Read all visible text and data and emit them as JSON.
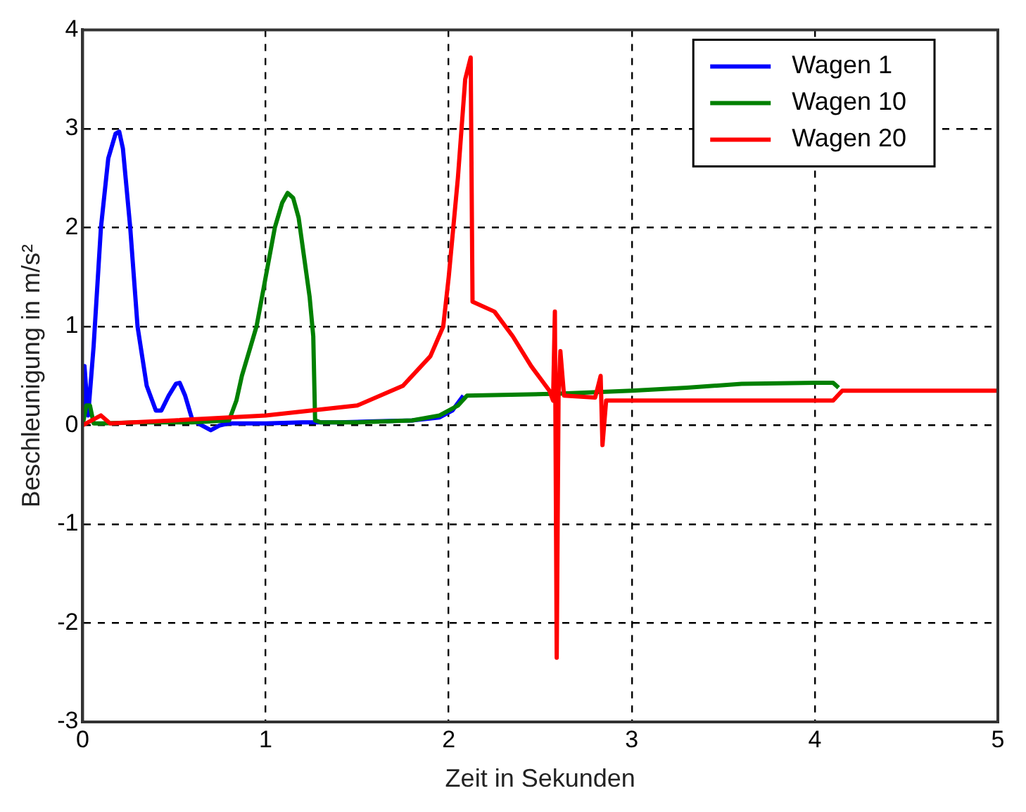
{
  "chart_data": {
    "type": "line",
    "xlabel": "Zeit in Sekunden",
    "ylabel": "Beschleunigung in m/s²",
    "xlim": [
      0,
      5
    ],
    "ylim": [
      -3,
      4
    ],
    "xticks": [
      0,
      1,
      2,
      3,
      4,
      5
    ],
    "yticks": [
      -3,
      -2,
      -1,
      0,
      1,
      2,
      3,
      4
    ],
    "grid": true,
    "legend": "top right",
    "marker": "none",
    "line_style": "solid",
    "series": [
      {
        "name": "Wagen 1",
        "color": "#0000ff",
        "x": [
          0,
          0.01,
          0.03,
          0.06,
          0.1,
          0.14,
          0.18,
          0.2,
          0.22,
          0.26,
          0.3,
          0.35,
          0.4,
          0.43,
          0.47,
          0.51,
          0.53,
          0.56,
          0.6,
          0.65,
          0.7,
          0.75,
          0.8,
          1.0,
          1.2,
          1.4,
          1.6,
          1.8,
          1.95,
          2.02,
          2.08
        ],
        "values": [
          0,
          0.6,
          0.1,
          0.8,
          2.0,
          2.7,
          2.95,
          2.97,
          2.8,
          2.0,
          1.0,
          0.4,
          0.15,
          0.15,
          0.3,
          0.42,
          0.43,
          0.3,
          0.05,
          0,
          -0.05,
          0,
          0.02,
          0.02,
          0.03,
          0.03,
          0.04,
          0.05,
          0.08,
          0.15,
          0.3
        ]
      },
      {
        "name": "Wagen 10",
        "color": "#008000",
        "x": [
          0,
          0.02,
          0.04,
          0.06,
          0.1,
          0.3,
          0.6,
          0.8,
          0.84,
          0.87,
          0.91,
          0.95,
          1.0,
          1.05,
          1.09,
          1.12,
          1.15,
          1.18,
          1.21,
          1.24,
          1.26,
          1.27,
          1.3,
          1.5,
          1.8,
          1.95,
          2.05,
          2.1,
          2.6,
          3.0,
          3.3,
          3.6,
          4.0,
          4.1,
          4.13
        ],
        "values": [
          0,
          0.2,
          0.2,
          0.02,
          0.02,
          0.03,
          0.03,
          0.05,
          0.25,
          0.5,
          0.75,
          1.0,
          1.5,
          2.0,
          2.25,
          2.35,
          2.3,
          2.1,
          1.7,
          1.3,
          0.9,
          0.05,
          0.03,
          0.03,
          0.05,
          0.1,
          0.2,
          0.3,
          0.32,
          0.35,
          0.38,
          0.42,
          0.43,
          0.43,
          0.38
        ]
      },
      {
        "name": "Wagen 20",
        "color": "#ff0000",
        "x": [
          0,
          0.1,
          0.15,
          0.5,
          1.0,
          1.5,
          1.75,
          1.9,
          1.97,
          2.0,
          2.05,
          2.09,
          2.12,
          2.13,
          2.25,
          2.35,
          2.45,
          2.55,
          2.57,
          2.58,
          2.59,
          2.6,
          2.61,
          2.63,
          2.8,
          2.83,
          2.84,
          2.86,
          3.5,
          4.1,
          4.15,
          5
        ],
        "values": [
          0,
          0.1,
          0.02,
          0.05,
          0.1,
          0.2,
          0.4,
          0.7,
          1.0,
          1.5,
          2.5,
          3.5,
          3.72,
          1.25,
          1.15,
          0.9,
          0.6,
          0.35,
          0.25,
          1.15,
          -2.35,
          0.3,
          0.75,
          0.3,
          0.28,
          0.5,
          -0.2,
          0.25,
          0.25,
          0.25,
          0.35,
          0.35
        ]
      }
    ]
  }
}
